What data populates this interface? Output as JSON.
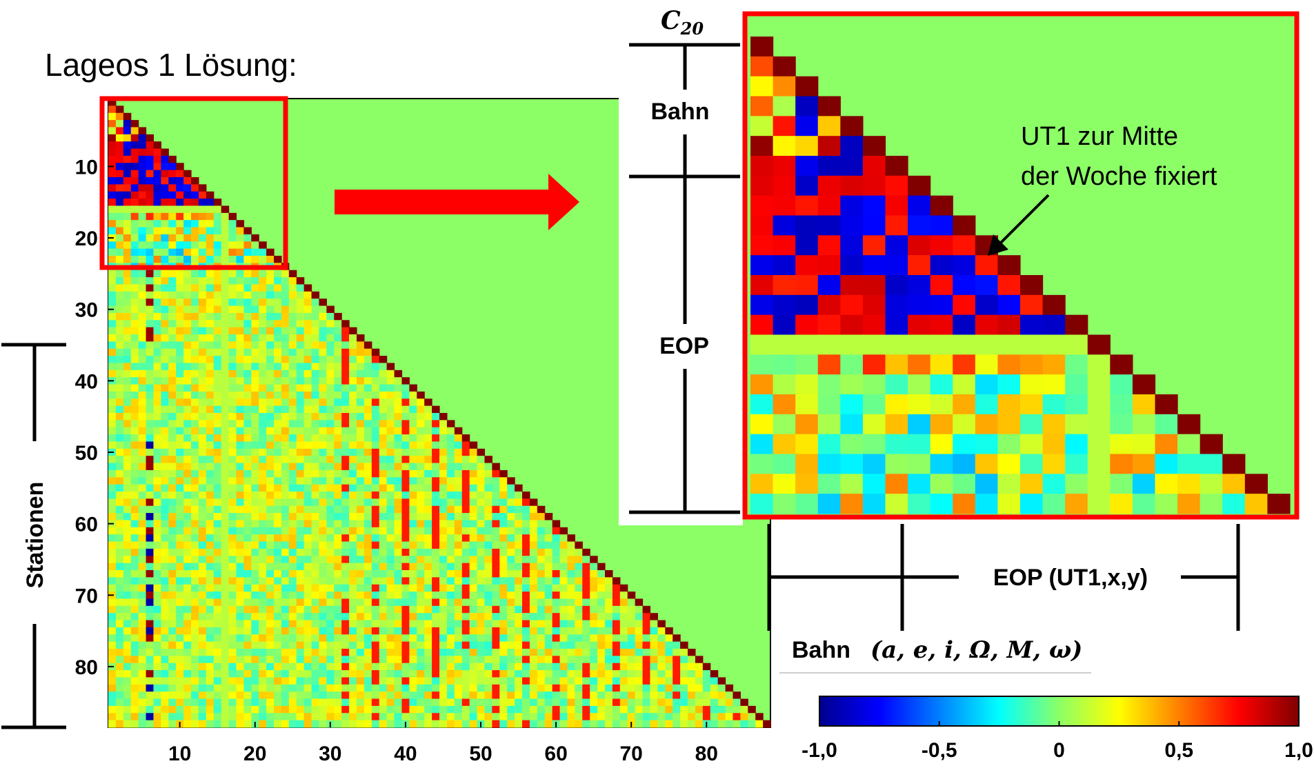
{
  "title": "Lageos 1 Lösung:",
  "chart_data": {
    "type": "heatmap",
    "size": 88,
    "xticks": [
      "10",
      "20",
      "30",
      "40",
      "50",
      "60",
      "70",
      "80"
    ],
    "yticks": [
      "10",
      "20",
      "30",
      "40",
      "50",
      "60",
      "70",
      "80"
    ],
    "ylabel": "Stationen",
    "colorbar": {
      "ticks": [
        "-1,0",
        "-0,5",
        "0",
        "0,5",
        "1,0"
      ],
      "range": [
        -1,
        1
      ]
    },
    "zoom": {
      "rows": [
        1,
        24
      ],
      "cols": [
        1,
        24
      ]
    },
    "fixed_parameter": 16,
    "background_value": 0.1
  },
  "zoom_labels": {
    "c20_base": "C",
    "c20_sub": "20",
    "bahn": "Bahn",
    "eop": "EOP",
    "annotation_line1": "UT1 zur Mitte",
    "annotation_line2": "der Woche fixiert",
    "eop_bottom": "EOP (UT1,x,y)",
    "bahn_bottom": "Bahn",
    "bahn_params": "(a, e, i, Ω, M, ω)"
  },
  "colors": {
    "background": "#8cff66",
    "highlight": "#ff0000"
  }
}
